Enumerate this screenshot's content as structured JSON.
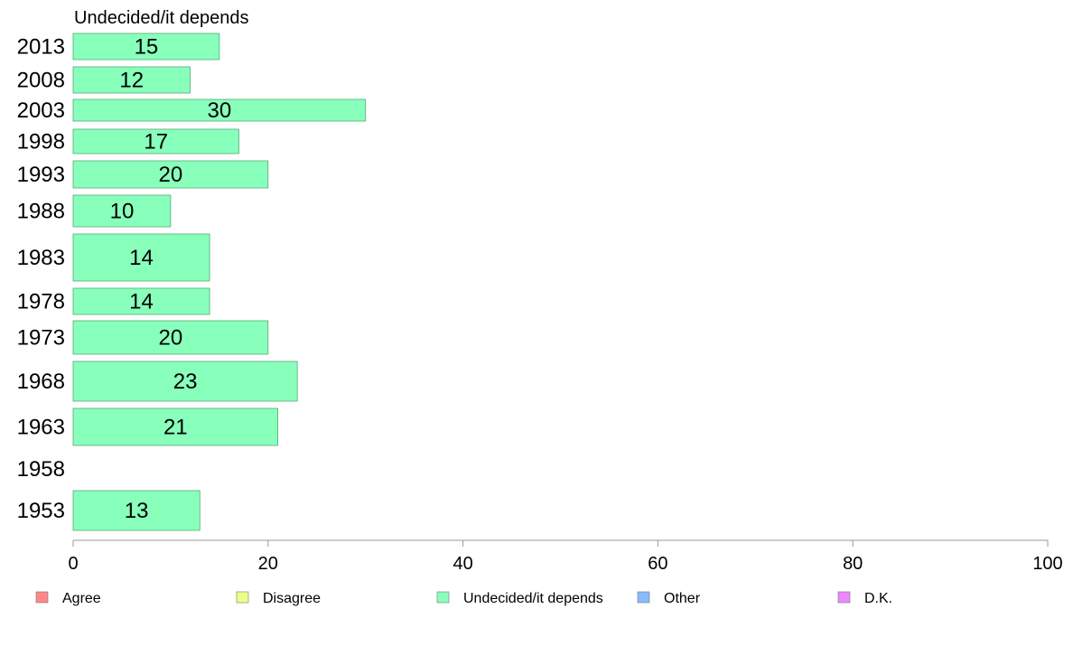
{
  "chart_data": {
    "type": "bar",
    "orientation": "horizontal",
    "title": "Undecided/it depends",
    "xlabel": "",
    "ylabel": "",
    "categories": [
      "2013",
      "2008",
      "2003",
      "1998",
      "1993",
      "1988",
      "1983",
      "1978",
      "1973",
      "1968",
      "1963",
      "1958",
      "1953"
    ],
    "series": [
      {
        "name": "Undecided/it depends",
        "values": [
          15,
          12,
          30,
          17,
          20,
          10,
          14,
          14,
          20,
          23,
          21,
          null,
          13
        ],
        "color": "#88ffbb"
      }
    ],
    "xlim": [
      0,
      100
    ],
    "xticks": [
      0,
      20,
      40,
      60,
      80,
      100
    ],
    "grid": false,
    "legend_position": "bottom",
    "legend": [
      {
        "label": "Agree",
        "color": "#ff8888"
      },
      {
        "label": "Disagree",
        "color": "#eeff88"
      },
      {
        "label": "Undecided/it depends",
        "color": "#88ffbb"
      },
      {
        "label": "Other",
        "color": "#88bbff"
      },
      {
        "label": "D.K.",
        "color": "#ee88ff"
      }
    ]
  }
}
